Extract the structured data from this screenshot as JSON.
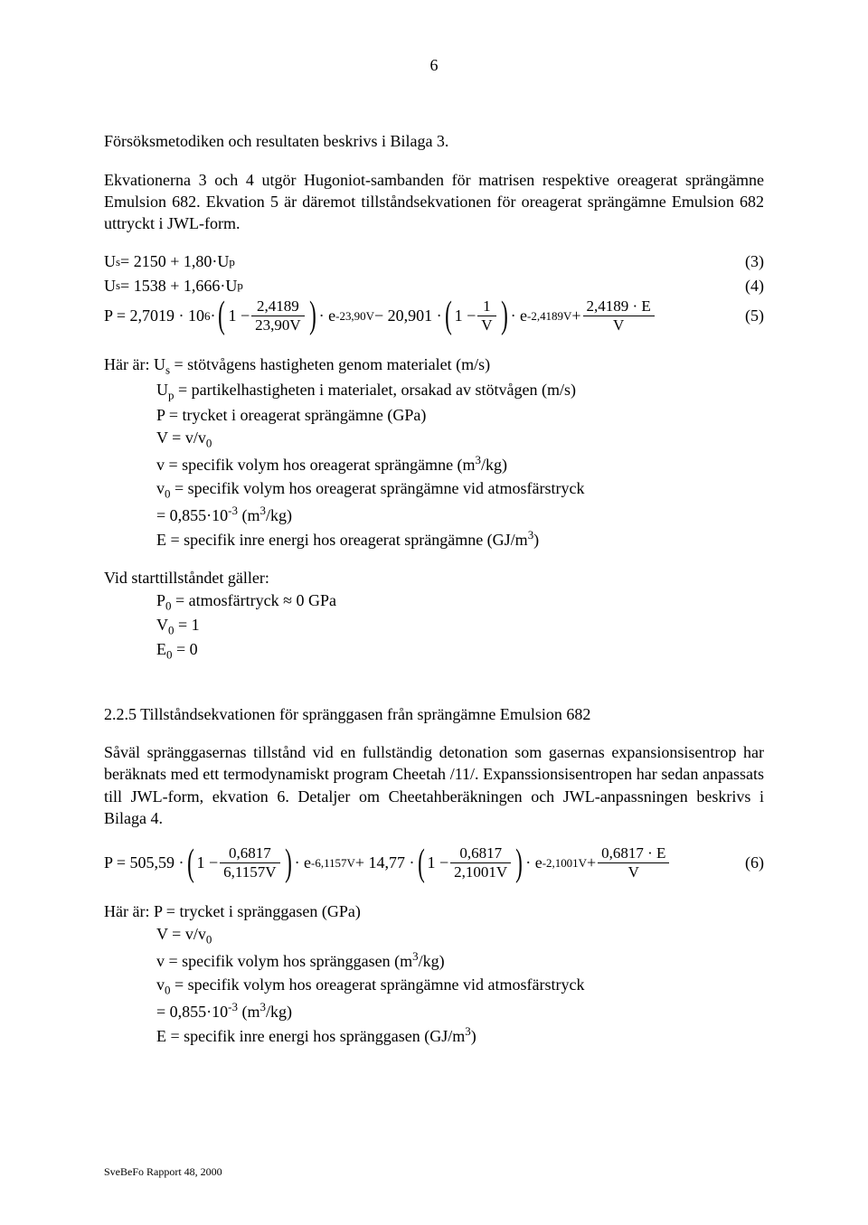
{
  "page_number": "6",
  "p1": "Försöksmetodiken och resultaten beskrivs i Bilaga 3.",
  "p2": "Ekvationerna 3 och 4 utgör Hugoniot-sambanden för matrisen respektive oreagerat sprängämne Emulsion 682. Ekvation 5 är däremot tillståndsekvationen för oreagerat sprängämne Emulsion 682 uttryckt i JWL-form.",
  "eq3": {
    "lhs": "U",
    "lhs_sub": "s",
    "rhs": " = 2150 + 1,80·U",
    "rhs_sub": "p",
    "num": "(3)"
  },
  "eq4": {
    "lhs": "U",
    "lhs_sub": "s",
    "rhs": " = 1538 + 1,666·U",
    "rhs_sub": "p",
    "num": "(4)"
  },
  "eq5": {
    "a": "P = 2,7019 · 10",
    "a_sup": "6",
    "b": " · ",
    "frac1_num": "2,4189",
    "frac1_den": "23,90V",
    "c": " · e",
    "c_sup": "-23,90V",
    "d": " − 20,901 · ",
    "frac2_num": "1",
    "frac2_den": "V",
    "e": " · e",
    "e_sup": "-2,4189V",
    "f": " + ",
    "frac3_num": "2,4189 · E",
    "frac3_den": "V",
    "num": "(5)"
  },
  "where1_lead": "Här är: U",
  "where1_lead_sub": "s",
  "where1_lead_rest": " = stötvågens hastigheten genom materialet (m/s)",
  "where1": {
    "l2a": "U",
    "l2a_sub": "p",
    "l2b": " = partikelhastigheten i materialet, orsakad av stötvågen (m/s)",
    "l3": "P  = trycket i oreagerat sprängämne (GPa)",
    "l4a": "V = v/v",
    "l4a_sub": "0",
    "l5": "v  = specifik volym hos oreagerat sprängämne (m",
    "l5_sup": "3",
    "l5b": "/kg)",
    "l6a": "v",
    "l6a_sub": "0",
    "l6b": " = specifik volym hos oreagerat sprängämne vid atmosfärstryck",
    "l7a": "= 0,855·10",
    "l7a_sup": "-3",
    "l7b": " (m",
    "l7b_sup": "3",
    "l7c": "/kg)",
    "l8a": "E = specifik inre energi hos oreagerat sprängämne (GJ/m",
    "l8_sup": "3",
    "l8b": ")"
  },
  "start_title": "Vid starttillståndet gäller:",
  "start": {
    "l1a": "P",
    "l1a_sub": "0",
    "l1b": " = atmosfärtryck ≈ 0 GPa",
    "l2a": "V",
    "l2a_sub": "0",
    "l2b": " = 1",
    "l3a": "E",
    "l3a_sub": "0",
    "l3b": " = 0"
  },
  "sec_heading": "2.2.5 Tillståndsekvationen för spränggasen från sprängämne Emulsion 682",
  "p3": "Såväl spränggasernas tillstånd vid en fullständig detonation som gasernas expansionsisentrop har beräknats med ett termodynamiskt program Cheetah /11/. Expanssionsisentropen har sedan anpassats till JWL-form, ekvation 6. Detaljer om Cheetahberäkningen och JWL-anpassningen beskrivs i Bilaga 4.",
  "eq6": {
    "a": "P = 505,59 · ",
    "frac1_num": "0,6817",
    "frac1_den": "6,1157V",
    "c": " · e",
    "c_sup": "-6,1157V",
    "d": " + 14,77 · ",
    "frac2_num": "0,6817",
    "frac2_den": "2,1001V",
    "e": " · e",
    "e_sup": "-2,1001V",
    "f": " + ",
    "frac3_num": "0,6817 · E",
    "frac3_den": "V",
    "num": "(6)"
  },
  "where2_lead": "Här är:  P  = trycket i spränggasen (GPa)",
  "where2": {
    "l2a": "V = v/v",
    "l2a_sub": "0",
    "l3a": "v  = specifik volym hos spränggasen (m",
    "l3_sup": "3",
    "l3b": "/kg)",
    "l4a": "v",
    "l4a_sub": "0",
    "l4b": " = specifik volym hos oreagerat sprängämne vid atmosfärstryck",
    "l5a": "= 0,855·10",
    "l5a_sup": "-3",
    "l5b": " (m",
    "l5b_sup": "3",
    "l5c": "/kg)",
    "l6a": "E = specifik inre energi hos spränggasen (GJ/m",
    "l6_sup": "3",
    "l6b": ")"
  },
  "footer": "SveBeFo Rapport 48, 2000"
}
